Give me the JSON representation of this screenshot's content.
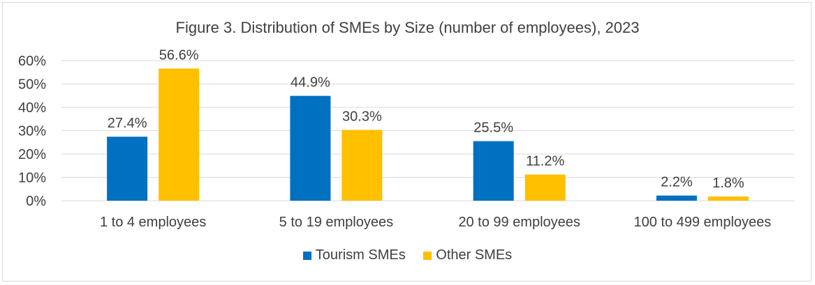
{
  "chart_data": {
    "type": "bar",
    "title": "Figure 3. Distribution of SMEs by Size (number of employees), 2023",
    "categories": [
      "1 to 4 employees",
      "5 to 19 employees",
      "20 to 99 employees",
      "100 to 499 employees"
    ],
    "series": [
      {
        "name": "Tourism SMEs",
        "color": "#0070C0",
        "values": [
          27.4,
          44.9,
          25.5,
          2.2
        ],
        "labels": [
          "27.4%",
          "44.9%",
          "25.5%",
          "2.2%"
        ]
      },
      {
        "name": "Other SMEs",
        "color": "#FFC000",
        "values": [
          56.6,
          30.3,
          11.2,
          1.8
        ],
        "labels": [
          "56.6%",
          "30.3%",
          "11.2%",
          "1.8%"
        ]
      }
    ],
    "yticks": [
      "0%",
      "10%",
      "20%",
      "30%",
      "40%",
      "50%",
      "60%"
    ],
    "ylim": [
      0,
      60
    ],
    "grid": true,
    "legend_position": "bottom"
  }
}
